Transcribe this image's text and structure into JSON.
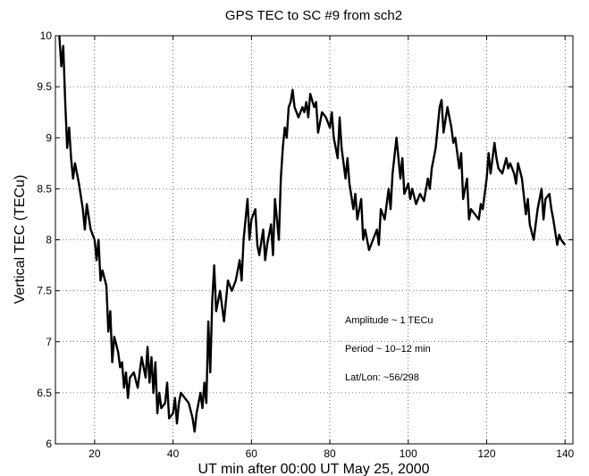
{
  "chart_data": {
    "type": "line",
    "title": "GPS TEC to SC #9 from sch2",
    "x_label": "UT min after 00:00 UT  May 25, 2000",
    "y_label": "Vertical TEC (TECu)",
    "annotations": [
      "Amplitude ~ 1 TECu",
      "Period ~ 10–12 min",
      "Lat/Lon: ~56/298"
    ],
    "xlim": [
      10,
      142
    ],
    "ylim": [
      6,
      10
    ],
    "xticks": [
      20,
      40,
      60,
      80,
      100,
      120,
      140
    ],
    "yticks": [
      6,
      6.5,
      7,
      7.5,
      8,
      8.5,
      9,
      9.5,
      10
    ],
    "grid": true,
    "series": [
      {
        "color": "#000000",
        "x": [
          11,
          11.5,
          12,
          12.5,
          13,
          13.5,
          14,
          14.5,
          15,
          16,
          17,
          17.5,
          18,
          19,
          20,
          20.5,
          21,
          21.5,
          22,
          23,
          23.5,
          24,
          24.5,
          25,
          26,
          26.5,
          27,
          27.5,
          28,
          28.5,
          29,
          30,
          31,
          31.5,
          32,
          33,
          33.5,
          34,
          34.5,
          35,
          35.5,
          36,
          36.5,
          37,
          38,
          38.5,
          39,
          40,
          40.5,
          41,
          41.5,
          42,
          43,
          44,
          45,
          45.5,
          46,
          47,
          47.5,
          48,
          48.5,
          49,
          49.5,
          50,
          50.5,
          51,
          52,
          53,
          54,
          55,
          56,
          57,
          57.5,
          58,
          59,
          59.5,
          60,
          61,
          61.5,
          62,
          63,
          63.5,
          64,
          65,
          65.5,
          66,
          67,
          67.5,
          68,
          68.5,
          69,
          69.5,
          70,
          70.5,
          71,
          72,
          73,
          73.5,
          74,
          74.5,
          75,
          76,
          76.5,
          77,
          78,
          79,
          80,
          80.5,
          81,
          82,
          82.5,
          83,
          84,
          84.5,
          85,
          86,
          86.5,
          87,
          88,
          88.5,
          89,
          90,
          91,
          92,
          92.5,
          93,
          94,
          95,
          95.5,
          96,
          97,
          98,
          98.5,
          99,
          100,
          100.5,
          101,
          102,
          103,
          104,
          105,
          105.5,
          106,
          107,
          107.5,
          108,
          108.5,
          109,
          110,
          111,
          111.5,
          112,
          113,
          113.5,
          114,
          115,
          115.5,
          116,
          117,
          118,
          118.5,
          119,
          120,
          120.5,
          121,
          122,
          122.5,
          123,
          124,
          125,
          125.5,
          126,
          127,
          127.5,
          128,
          129,
          130,
          130.5,
          131,
          132,
          133,
          134,
          134.5,
          135,
          136,
          136.5,
          137,
          138,
          138.5,
          139,
          140
        ],
        "values": [
          10.0,
          9.7,
          9.9,
          9.35,
          8.9,
          9.1,
          8.8,
          8.6,
          8.75,
          8.55,
          8.3,
          8.1,
          8.35,
          8.1,
          8.0,
          7.8,
          8.0,
          7.6,
          7.7,
          7.55,
          7.1,
          7.3,
          6.8,
          7.05,
          6.9,
          6.75,
          6.8,
          6.55,
          6.7,
          6.45,
          6.65,
          6.7,
          6.55,
          6.7,
          6.85,
          6.65,
          6.95,
          6.6,
          6.85,
          6.5,
          6.8,
          6.3,
          6.5,
          6.35,
          6.4,
          6.6,
          6.25,
          6.3,
          6.45,
          6.2,
          6.4,
          6.5,
          6.45,
          6.4,
          6.25,
          6.12,
          6.3,
          6.5,
          6.35,
          6.6,
          6.4,
          7.2,
          6.7,
          7.4,
          7.75,
          7.3,
          7.5,
          7.2,
          7.6,
          7.5,
          7.6,
          7.8,
          7.6,
          8.0,
          8.4,
          8.0,
          8.2,
          8.3,
          7.95,
          7.85,
          8.1,
          7.8,
          7.95,
          8.15,
          7.85,
          8.4,
          8.0,
          8.6,
          8.9,
          9.1,
          9.0,
          9.3,
          9.35,
          9.47,
          9.3,
          9.2,
          9.3,
          9.25,
          9.35,
          9.2,
          9.43,
          9.3,
          9.35,
          9.05,
          9.25,
          9.2,
          9.1,
          9.25,
          9.0,
          8.8,
          9.2,
          8.9,
          8.6,
          8.8,
          8.55,
          8.3,
          8.45,
          8.2,
          8.4,
          8.0,
          8.1,
          7.9,
          8.0,
          8.1,
          7.95,
          8.3,
          8.2,
          8.5,
          8.3,
          8.65,
          9.0,
          8.6,
          8.8,
          8.45,
          8.55,
          8.4,
          8.5,
          8.35,
          8.45,
          8.38,
          8.6,
          8.5,
          8.7,
          8.9,
          9.1,
          9.3,
          9.37,
          9.05,
          9.3,
          9.1,
          8.95,
          9.0,
          8.7,
          8.85,
          8.4,
          8.6,
          8.2,
          8.3,
          8.25,
          8.2,
          8.35,
          8.3,
          8.6,
          8.85,
          8.65,
          8.95,
          8.8,
          8.7,
          8.65,
          8.8,
          8.7,
          8.75,
          8.65,
          8.55,
          8.75,
          8.6,
          8.25,
          8.4,
          8.15,
          8.0,
          8.3,
          8.5,
          8.2,
          8.4,
          8.45,
          8.3,
          8.2,
          7.95,
          8.05,
          8.0,
          7.95
        ]
      }
    ]
  }
}
